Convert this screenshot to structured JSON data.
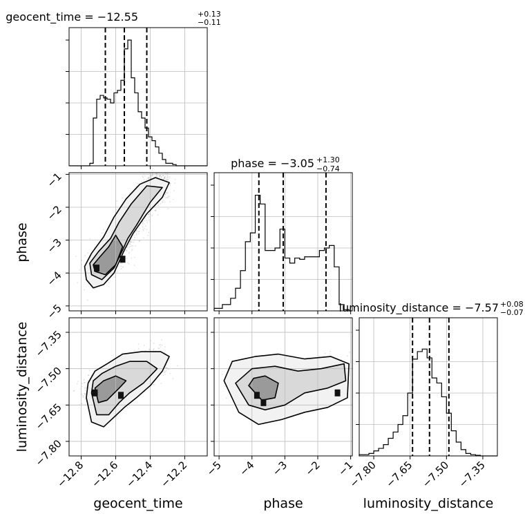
{
  "chart_data": {
    "type": "corner",
    "parameters": [
      "geocent_time",
      "phase",
      "luminosity_distance"
    ],
    "panel_titles": [
      {
        "text": "geocent_time = −12.55",
        "sup": "+0.13",
        "sub": "−0.11"
      },
      {
        "text": "phase = −3.05",
        "sup": "+1.30",
        "sub": "−0.74"
      },
      {
        "text": "luminosity_distance = −7.57",
        "sup": "+0.08",
        "sub": "−0.07"
      }
    ],
    "axis_labels": {
      "x": [
        "geocent_time",
        "phase",
        "luminosity_distance"
      ],
      "y": [
        "phase",
        "luminosity_distance"
      ]
    },
    "ranges": {
      "geocent_time": [
        -12.87,
        -12.07
      ],
      "phase": [
        -5.15,
        -0.95
      ],
      "luminosity_distance": [
        -7.86,
        -7.29
      ]
    },
    "ticks": {
      "geocent_time": [
        -12.8,
        -12.6,
        -12.4,
        -12.2
      ],
      "phase": [
        -5,
        -4,
        -3,
        -2,
        -1
      ],
      "luminosity_distance": [
        -7.8,
        -7.65,
        -7.5,
        -7.35
      ]
    },
    "tick_labels": {
      "geocent_time": [
        "−12.8",
        "−12.6",
        "−12.4",
        "−12.2"
      ],
      "phase": [
        "−5",
        "−4",
        "−3",
        "−2",
        "−1"
      ],
      "luminosity_distance": [
        "−7.80",
        "−7.65",
        "−7.50",
        "−7.35"
      ]
    },
    "quantiles": {
      "geocent_time": [
        -12.66,
        -12.55,
        -12.42
      ],
      "phase": [
        -3.79,
        -3.05,
        -1.75
      ],
      "luminosity_distance": [
        -7.64,
        -7.57,
        -7.49
      ]
    },
    "histograms": {
      "geocent_time": {
        "edges": [
          -12.87,
          -12.75,
          -12.73,
          -12.71,
          -12.69,
          -12.67,
          -12.65,
          -12.63,
          -12.61,
          -12.59,
          -12.57,
          -12.55,
          -12.53,
          -12.51,
          -12.49,
          -12.47,
          -12.45,
          -12.43,
          -12.41,
          -12.39,
          -12.37,
          -12.35,
          -12.33,
          -12.31,
          -12.29,
          -12.27,
          -12.25,
          -12.23,
          -12.21,
          -12.07
        ],
        "counts": [
          0,
          0.02,
          0.38,
          0.53,
          0.56,
          0.54,
          0.53,
          0.5,
          0.58,
          0.6,
          0.68,
          0.93,
          1.0,
          0.7,
          0.58,
          0.43,
          0.38,
          0.3,
          0.23,
          0.2,
          0.15,
          0.1,
          0.05,
          0.02,
          0.02,
          0.01,
          0,
          0,
          0
        ]
      },
      "phase": {
        "edges": [
          -5.15,
          -4.9,
          -4.65,
          -4.5,
          -4.35,
          -4.2,
          -4.05,
          -3.9,
          -3.75,
          -3.6,
          -3.45,
          -3.3,
          -3.15,
          -3.0,
          -2.85,
          -2.7,
          -2.55,
          -2.4,
          -2.25,
          -2.1,
          -1.95,
          -1.8,
          -1.65,
          -1.5,
          -1.35,
          -1.2,
          -1.05,
          -0.95
        ],
        "counts": [
          0.02,
          0.05,
          0.1,
          0.18,
          0.32,
          0.55,
          0.62,
          0.92,
          0.85,
          0.48,
          0.48,
          0.5,
          0.65,
          0.42,
          0.38,
          0.42,
          0.41,
          0.43,
          0.43,
          0.43,
          0.48,
          0.5,
          0.52,
          0.35,
          0.05,
          0.01,
          0
        ]
      },
      "luminosity_distance": {
        "edges": [
          -7.86,
          -7.82,
          -7.8,
          -7.78,
          -7.76,
          -7.74,
          -7.72,
          -7.7,
          -7.68,
          -7.66,
          -7.64,
          -7.62,
          -7.6,
          -7.58,
          -7.56,
          -7.54,
          -7.52,
          -7.5,
          -7.48,
          -7.46,
          -7.44,
          -7.42,
          -7.4,
          -7.38,
          -7.36,
          -7.29
        ],
        "counts": [
          0.01,
          0.02,
          0.04,
          0.06,
          0.09,
          0.14,
          0.19,
          0.25,
          0.32,
          0.5,
          0.77,
          0.83,
          0.85,
          0.78,
          0.62,
          0.58,
          0.47,
          0.34,
          0.2,
          0.11,
          0.05,
          0.02,
          0.01,
          0.005,
          0
        ]
      }
    },
    "joint": [
      {
        "x": "geocent_time",
        "y": "phase",
        "ridge": [
          [
            -12.74,
            -3.9
          ],
          [
            -12.66,
            -3.7
          ],
          [
            -12.58,
            -3.2
          ],
          [
            -12.52,
            -2.6
          ],
          [
            -12.46,
            -2.0
          ],
          [
            -12.4,
            -1.5
          ],
          [
            -12.32,
            -1.2
          ]
        ],
        "contours": [
          [
            [
              -12.77,
              -4.2
            ],
            [
              -12.73,
              -4.45
            ],
            [
              -12.67,
              -4.35
            ],
            [
              -12.61,
              -4.0
            ],
            [
              -12.55,
              -3.3
            ],
            [
              -12.5,
              -2.8
            ],
            [
              -12.42,
              -2.2
            ],
            [
              -12.33,
              -1.7
            ],
            [
              -12.29,
              -1.25
            ],
            [
              -12.37,
              -1.1
            ],
            [
              -12.46,
              -1.3
            ],
            [
              -12.54,
              -1.75
            ],
            [
              -12.61,
              -2.3
            ],
            [
              -12.67,
              -2.9
            ],
            [
              -12.74,
              -3.4
            ],
            [
              -12.78,
              -3.8
            ]
          ],
          [
            [
              -12.74,
              -4.05
            ],
            [
              -12.68,
              -4.2
            ],
            [
              -12.61,
              -3.85
            ],
            [
              -12.56,
              -3.3
            ],
            [
              -12.53,
              -2.95
            ],
            [
              -12.48,
              -2.55
            ],
            [
              -12.4,
              -1.85
            ],
            [
              -12.33,
              -1.4
            ],
            [
              -12.42,
              -1.35
            ],
            [
              -12.51,
              -1.9
            ],
            [
              -12.58,
              -2.45
            ],
            [
              -12.63,
              -2.95
            ],
            [
              -12.7,
              -3.35
            ],
            [
              -12.75,
              -3.7
            ]
          ],
          [
            [
              -12.72,
              -3.95
            ],
            [
              -12.66,
              -4.05
            ],
            [
              -12.6,
              -3.75
            ],
            [
              -12.56,
              -3.2
            ],
            [
              -12.6,
              -2.85
            ],
            [
              -12.64,
              -3.2
            ],
            [
              -12.69,
              -3.5
            ],
            [
              -12.73,
              -3.75
            ]
          ]
        ],
        "peaks": [
          [
            -12.71,
            -3.85
          ],
          [
            -12.56,
            -3.58
          ]
        ]
      },
      {
        "x": "geocent_time",
        "y": "luminosity_distance",
        "ridge": [
          [
            -12.75,
            -7.6
          ],
          [
            -12.68,
            -7.62
          ],
          [
            -12.6,
            -7.58
          ],
          [
            -12.52,
            -7.53
          ],
          [
            -12.44,
            -7.5
          ],
          [
            -12.34,
            -7.46
          ]
        ],
        "contours": [
          [
            [
              -12.77,
              -7.62
            ],
            [
              -12.74,
              -7.72
            ],
            [
              -12.67,
              -7.74
            ],
            [
              -12.61,
              -7.7
            ],
            [
              -12.55,
              -7.66
            ],
            [
              -12.48,
              -7.62
            ],
            [
              -12.4,
              -7.57
            ],
            [
              -12.33,
              -7.51
            ],
            [
              -12.29,
              -7.45
            ],
            [
              -12.34,
              -7.43
            ],
            [
              -12.45,
              -7.43
            ],
            [
              -12.56,
              -7.44
            ],
            [
              -12.65,
              -7.48
            ],
            [
              -12.72,
              -7.51
            ],
            [
              -12.76,
              -7.56
            ]
          ],
          [
            [
              -12.74,
              -7.6
            ],
            [
              -12.71,
              -7.69
            ],
            [
              -12.64,
              -7.69
            ],
            [
              -12.58,
              -7.64
            ],
            [
              -12.52,
              -7.6
            ],
            [
              -12.44,
              -7.56
            ],
            [
              -12.36,
              -7.5
            ],
            [
              -12.42,
              -7.47
            ],
            [
              -12.52,
              -7.47
            ],
            [
              -12.6,
              -7.49
            ],
            [
              -12.68,
              -7.52
            ],
            [
              -12.73,
              -7.55
            ]
          ],
          [
            [
              -12.72,
              -7.58
            ],
            [
              -12.7,
              -7.64
            ],
            [
              -12.65,
              -7.63
            ],
            [
              -12.58,
              -7.58
            ],
            [
              -12.54,
              -7.55
            ],
            [
              -12.6,
              -7.53
            ],
            [
              -12.67,
              -7.55
            ]
          ]
        ],
        "peaks": [
          [
            -12.72,
            -7.6
          ],
          [
            -12.57,
            -7.61
          ]
        ]
      },
      {
        "x": "phase",
        "y": "luminosity_distance",
        "ridge": [
          [
            -4.5,
            -7.55
          ],
          [
            -3.8,
            -7.6
          ],
          [
            -3.0,
            -7.58
          ],
          [
            -2.2,
            -7.55
          ],
          [
            -1.3,
            -7.5
          ]
        ],
        "contours": [
          [
            [
              -4.85,
              -7.55
            ],
            [
              -4.4,
              -7.68
            ],
            [
              -3.8,
              -7.73
            ],
            [
              -3.1,
              -7.71
            ],
            [
              -2.4,
              -7.68
            ],
            [
              -1.7,
              -7.66
            ],
            [
              -1.1,
              -7.62
            ],
            [
              -1.05,
              -7.48
            ],
            [
              -1.6,
              -7.45
            ],
            [
              -2.4,
              -7.46
            ],
            [
              -3.2,
              -7.44
            ],
            [
              -3.9,
              -7.45
            ],
            [
              -4.6,
              -7.47
            ]
          ],
          [
            [
              -4.5,
              -7.56
            ],
            [
              -4.1,
              -7.65
            ],
            [
              -3.6,
              -7.67
            ],
            [
              -3.0,
              -7.65
            ],
            [
              -2.4,
              -7.6
            ],
            [
              -1.7,
              -7.58
            ],
            [
              -1.15,
              -7.55
            ],
            [
              -1.2,
              -7.48
            ],
            [
              -1.9,
              -7.5
            ],
            [
              -2.6,
              -7.51
            ],
            [
              -3.3,
              -7.49
            ],
            [
              -4.0,
              -7.5
            ]
          ],
          [
            [
              -4.1,
              -7.57
            ],
            [
              -3.7,
              -7.63
            ],
            [
              -3.3,
              -7.62
            ],
            [
              -3.2,
              -7.56
            ],
            [
              -3.6,
              -7.53
            ],
            [
              -3.95,
              -7.54
            ]
          ]
        ],
        "peaks": [
          [
            -3.85,
            -7.61
          ],
          [
            -3.65,
            -7.64
          ],
          [
            -1.4,
            -7.6
          ]
        ]
      }
    ],
    "grid": true
  }
}
